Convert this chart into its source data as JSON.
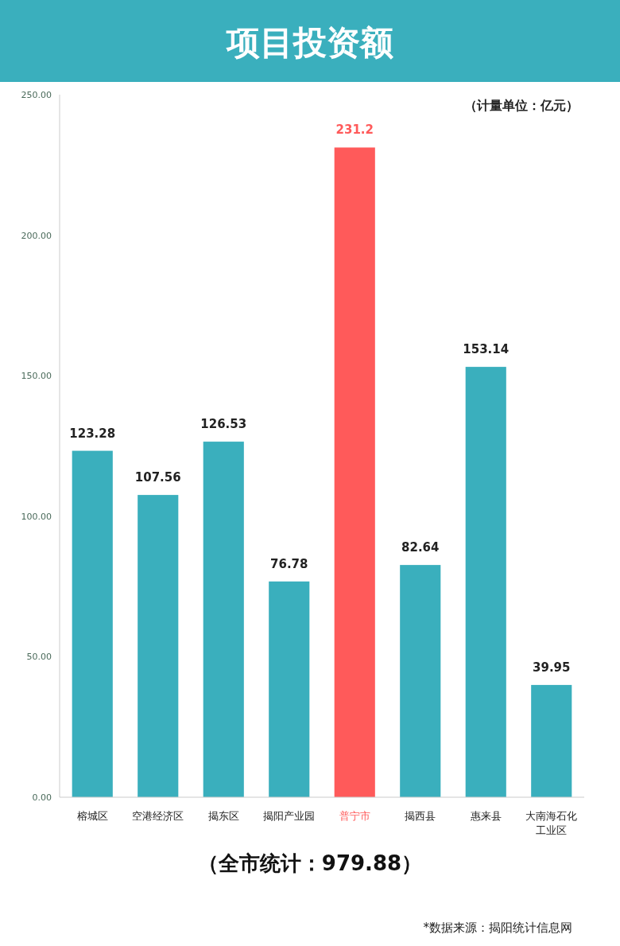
{
  "chart_data": {
    "type": "bar",
    "title": "项目投资额",
    "categories": [
      "榕城区",
      "空港经济区",
      "揭东区",
      "揭阳产业园",
      "普宁市",
      "揭西县",
      "惠来县",
      "大南海石化工业区"
    ],
    "values": [
      123.28,
      107.56,
      126.53,
      76.78,
      231.2,
      82.64,
      153.14,
      39.95
    ],
    "color": "#3aafbd",
    "colors": [
      "#3aafbd",
      "#3aafbd",
      "#3aafbd",
      "#3aafbd",
      "#ff5a5a",
      "#3aafbd",
      "#3aafbd",
      "#3aafbd"
    ],
    "ylim": [
      0,
      250
    ],
    "yticks": [
      {
        "value": 0,
        "label": "0.00"
      },
      {
        "value": 50,
        "label": "50.00"
      },
      {
        "value": 100,
        "label": "100.00"
      },
      {
        "value": 150,
        "label": "150.00"
      },
      {
        "value": 200,
        "label": "200.00"
      },
      {
        "value": 250,
        "label": "250.00"
      }
    ],
    "data_labels": true,
    "grid": false,
    "annotations": [
      "（计量单位：亿元）",
      "（全市统计：979.88）",
      "*数据来源：揭阳统计信息网"
    ]
  }
}
